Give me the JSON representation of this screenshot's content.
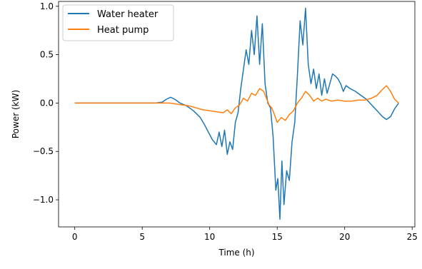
{
  "chart_data": {
    "type": "line",
    "title": "",
    "xlabel": "Time (h)",
    "ylabel": "Power (kW)",
    "xlim": [
      -1.2,
      25.2
    ],
    "ylim": [
      -1.28,
      1.05
    ],
    "xticks": [
      0,
      5,
      10,
      15,
      20,
      25
    ],
    "xtick_labels": [
      "0",
      "5",
      "10",
      "15",
      "20",
      "25"
    ],
    "yticks": [
      -1.0,
      -0.5,
      0.0,
      0.5,
      1.0
    ],
    "ytick_labels": [
      "−1.0",
      "−0.5",
      "0.0",
      "0.5",
      "1.0"
    ],
    "grid": false,
    "legend_position": "top-left",
    "series": [
      {
        "name": "Water heater",
        "color": "#1f77b4",
        "points": [
          [
            0,
            0
          ],
          [
            3,
            0
          ],
          [
            6,
            0
          ],
          [
            6.5,
            0.01
          ],
          [
            6.8,
            0.04
          ],
          [
            7.1,
            0.06
          ],
          [
            7.4,
            0.04
          ],
          [
            7.8,
            0.0
          ],
          [
            8.3,
            -0.03
          ],
          [
            8.8,
            -0.08
          ],
          [
            9.3,
            -0.15
          ],
          [
            9.6,
            -0.22
          ],
          [
            9.9,
            -0.3
          ],
          [
            10.2,
            -0.38
          ],
          [
            10.5,
            -0.43
          ],
          [
            10.7,
            -0.3
          ],
          [
            10.9,
            -0.45
          ],
          [
            11.1,
            -0.28
          ],
          [
            11.3,
            -0.53
          ],
          [
            11.5,
            -0.4
          ],
          [
            11.7,
            -0.48
          ],
          [
            11.9,
            -0.2
          ],
          [
            12.1,
            -0.1
          ],
          [
            12.3,
            0.15
          ],
          [
            12.5,
            0.35
          ],
          [
            12.7,
            0.55
          ],
          [
            12.9,
            0.4
          ],
          [
            13.1,
            0.75
          ],
          [
            13.3,
            0.5
          ],
          [
            13.5,
            0.9
          ],
          [
            13.7,
            0.4
          ],
          [
            13.9,
            0.82
          ],
          [
            14.1,
            0.2
          ],
          [
            14.3,
            0.0
          ],
          [
            14.5,
            -0.05
          ],
          [
            14.7,
            -0.35
          ],
          [
            14.9,
            -0.9
          ],
          [
            15.05,
            -0.78
          ],
          [
            15.2,
            -1.2
          ],
          [
            15.35,
            -0.6
          ],
          [
            15.5,
            -1.05
          ],
          [
            15.7,
            -0.7
          ],
          [
            15.9,
            -0.8
          ],
          [
            16.1,
            -0.4
          ],
          [
            16.3,
            -0.2
          ],
          [
            16.5,
            0.3
          ],
          [
            16.7,
            0.85
          ],
          [
            16.9,
            0.6
          ],
          [
            17.1,
            0.98
          ],
          [
            17.3,
            0.4
          ],
          [
            17.5,
            0.2
          ],
          [
            17.7,
            0.35
          ],
          [
            17.9,
            0.15
          ],
          [
            18.1,
            0.3
          ],
          [
            18.3,
            0.08
          ],
          [
            18.5,
            0.25
          ],
          [
            18.7,
            0.1
          ],
          [
            18.9,
            0.2
          ],
          [
            19.1,
            0.3
          ],
          [
            19.3,
            0.28
          ],
          [
            19.5,
            0.25
          ],
          [
            19.7,
            0.2
          ],
          [
            19.9,
            0.12
          ],
          [
            20.1,
            0.18
          ],
          [
            20.4,
            0.15
          ],
          [
            20.8,
            0.12
          ],
          [
            21.2,
            0.08
          ],
          [
            21.6,
            0.04
          ],
          [
            22.0,
            -0.02
          ],
          [
            22.4,
            -0.08
          ],
          [
            22.8,
            -0.14
          ],
          [
            23.1,
            -0.17
          ],
          [
            23.4,
            -0.14
          ],
          [
            23.7,
            -0.06
          ],
          [
            24.0,
            0.0
          ]
        ]
      },
      {
        "name": "Heat pump",
        "color": "#ff7f0e",
        "points": [
          [
            0,
            0
          ],
          [
            6,
            0
          ],
          [
            7,
            0.0
          ],
          [
            8,
            -0.02
          ],
          [
            8.5,
            -0.03
          ],
          [
            9,
            -0.05
          ],
          [
            9.5,
            -0.07
          ],
          [
            10,
            -0.08
          ],
          [
            10.5,
            -0.09
          ],
          [
            11,
            -0.1
          ],
          [
            11.3,
            -0.07
          ],
          [
            11.6,
            -0.11
          ],
          [
            11.9,
            -0.05
          ],
          [
            12.2,
            -0.02
          ],
          [
            12.5,
            0.05
          ],
          [
            12.8,
            0.02
          ],
          [
            13.1,
            0.1
          ],
          [
            13.4,
            0.08
          ],
          [
            13.7,
            0.15
          ],
          [
            14.0,
            0.12
          ],
          [
            14.2,
            0.05
          ],
          [
            14.4,
            -0.02
          ],
          [
            14.6,
            -0.05
          ],
          [
            14.8,
            -0.12
          ],
          [
            15.0,
            -0.2
          ],
          [
            15.3,
            -0.15
          ],
          [
            15.6,
            -0.18
          ],
          [
            15.9,
            -0.12
          ],
          [
            16.2,
            -0.08
          ],
          [
            16.5,
            0.0
          ],
          [
            16.8,
            0.05
          ],
          [
            17.1,
            0.12
          ],
          [
            17.4,
            0.08
          ],
          [
            17.7,
            0.02
          ],
          [
            18.0,
            0.05
          ],
          [
            18.3,
            0.02
          ],
          [
            18.6,
            0.04
          ],
          [
            19.0,
            0.02
          ],
          [
            19.5,
            0.03
          ],
          [
            20.0,
            0.02
          ],
          [
            20.5,
            0.02
          ],
          [
            21.0,
            0.03
          ],
          [
            21.5,
            0.03
          ],
          [
            22.0,
            0.05
          ],
          [
            22.4,
            0.08
          ],
          [
            22.8,
            0.14
          ],
          [
            23.1,
            0.18
          ],
          [
            23.4,
            0.12
          ],
          [
            23.7,
            0.04
          ],
          [
            24.0,
            0.0
          ]
        ]
      }
    ]
  }
}
